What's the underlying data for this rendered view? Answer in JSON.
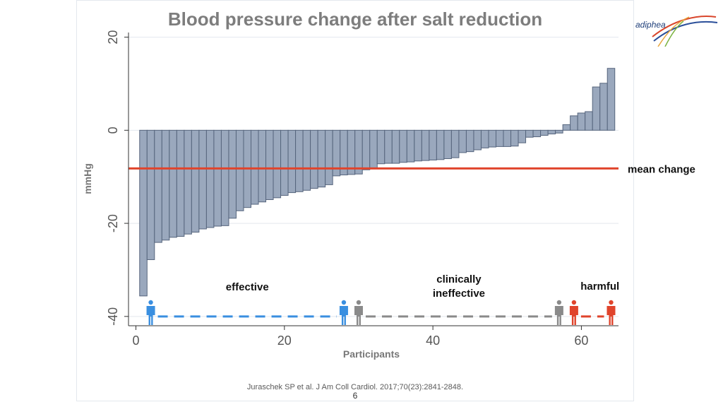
{
  "slide": {
    "title": "Blood pressure change after salt reduction",
    "citation": "Juraschek SP et al.  J Am Coll Cardiol. 2017;70(23):2841-2848.",
    "page_number": "6",
    "logo_text": "adiphea",
    "logo_icon": "adiphea-swoosh-logo"
  },
  "chart_data": {
    "type": "bar",
    "title": "Blood pressure change after salt reduction",
    "xlabel": "Participants",
    "ylabel": "mmHg",
    "xlim": [
      -1,
      65
    ],
    "ylim": [
      -42,
      21
    ],
    "x_ticks": [
      0,
      20,
      40,
      60
    ],
    "y_ticks": [
      -40,
      -20,
      0,
      20
    ],
    "grid": true,
    "series": [
      {
        "x": [
          1,
          2,
          3,
          4,
          5,
          6,
          7,
          8,
          9,
          10,
          11,
          12,
          13,
          14,
          15,
          16,
          17,
          18,
          19,
          20,
          21,
          22,
          23,
          24,
          25,
          26,
          27,
          28,
          29,
          30,
          31,
          32,
          33,
          34,
          35,
          36,
          37,
          38,
          39,
          40,
          41,
          42,
          43,
          44,
          45,
          46,
          47,
          48,
          49,
          50,
          51,
          52,
          53,
          54,
          55,
          56,
          57,
          58,
          59,
          60,
          61,
          62,
          63,
          64
        ],
        "values": [
          -35.6,
          -27.8,
          -24.1,
          -23.6,
          -23.0,
          -22.8,
          -22.3,
          -21.9,
          -21.2,
          -20.9,
          -20.6,
          -20.5,
          -18.9,
          -17.3,
          -16.6,
          -15.9,
          -15.4,
          -14.9,
          -14.5,
          -14.0,
          -13.4,
          -13.2,
          -12.9,
          -12.5,
          -12.2,
          -11.7,
          -9.8,
          -9.6,
          -9.5,
          -9.4,
          -8.5,
          -8.3,
          -7.2,
          -7.1,
          -7.1,
          -6.9,
          -6.8,
          -6.6,
          -6.5,
          -6.4,
          -6.3,
          -6.1,
          -5.9,
          -4.8,
          -4.6,
          -4.2,
          -3.8,
          -3.6,
          -3.5,
          -3.5,
          -3.4,
          -2.7,
          -1.5,
          -1.4,
          -1.1,
          -0.8,
          -0.6,
          1.2,
          3.1,
          3.7,
          4.0,
          9.3,
          10.1,
          13.3
        ]
      }
    ],
    "reference_line": {
      "label": "mean change",
      "value": -8.2
    },
    "groups": [
      {
        "label": "effective",
        "range": [
          2,
          28
        ],
        "color": "#3a8fe0"
      },
      {
        "label": "clinically ineffective",
        "range": [
          30,
          57
        ],
        "color": "#8a8a8a"
      },
      {
        "label": "harmful",
        "range": [
          59,
          64
        ],
        "color": "#e0442c"
      }
    ],
    "colors": {
      "bar_fill": "#9aa8bd",
      "bar_stroke": "#56657d",
      "mean_line": "#e0442c"
    }
  }
}
